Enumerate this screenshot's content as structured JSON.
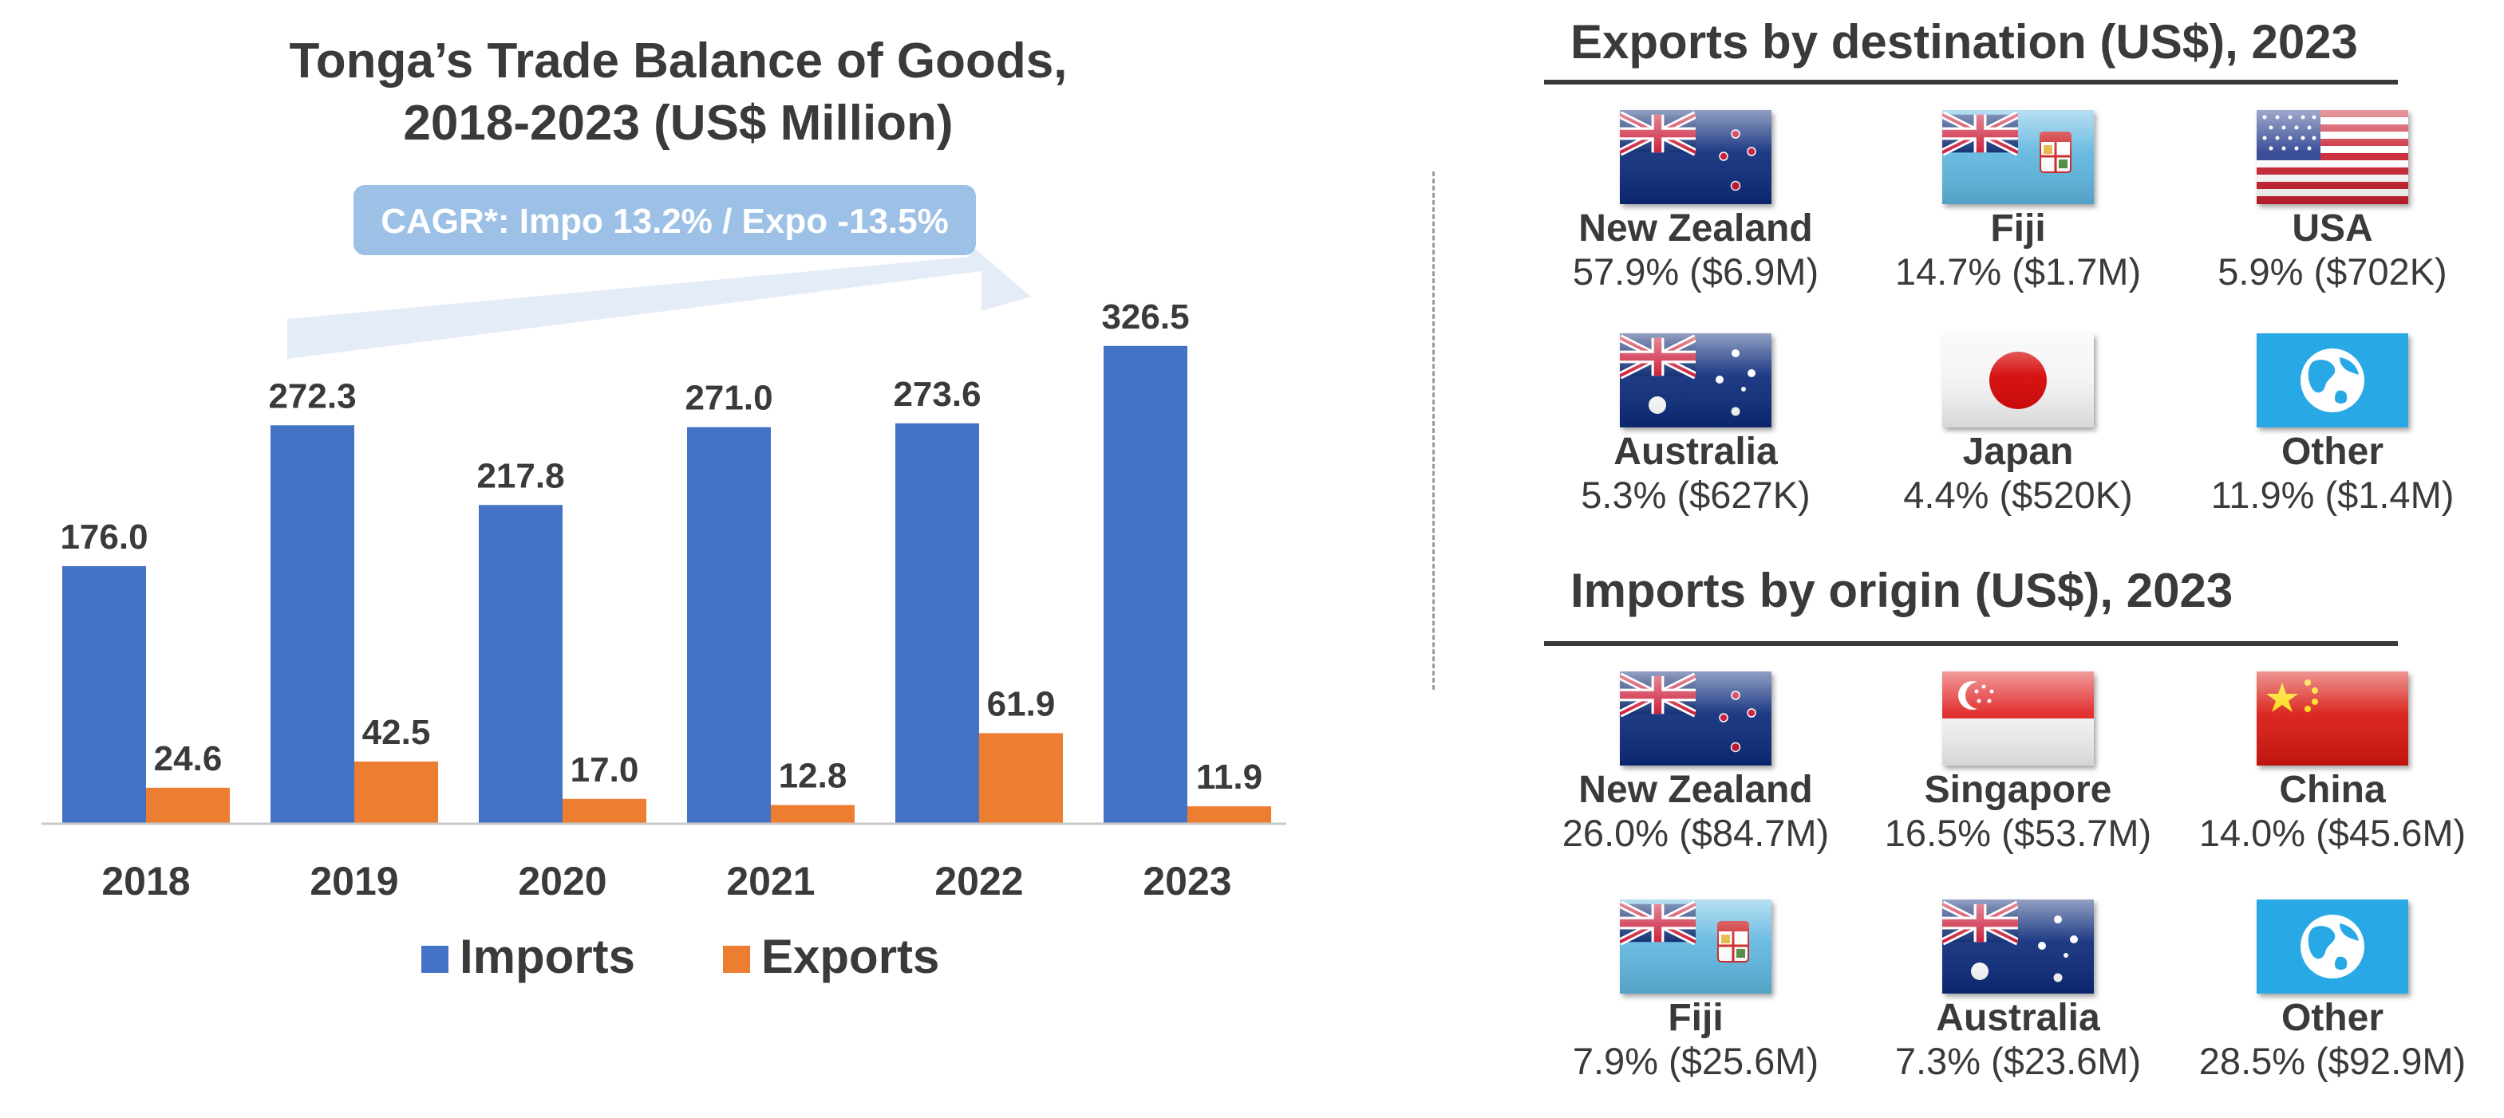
{
  "chart_data": {
    "type": "bar",
    "title_lines": [
      "Tonga’s Trade Balance of Goods,",
      "2018-2023 (US$ Million)"
    ],
    "categories": [
      "2018",
      "2019",
      "2020",
      "2021",
      "2022",
      "2023"
    ],
    "series": [
      {
        "name": "Imports",
        "color": "#4472C4",
        "values": [
          176.0,
          272.3,
          217.8,
          271.0,
          273.6,
          326.5
        ],
        "labels": [
          "176.0",
          "272.3",
          "217.8",
          "271.0",
          "273.6",
          "326.5"
        ]
      },
      {
        "name": "Exports",
        "color": "#ED7D31",
        "values": [
          24.6,
          42.5,
          17.0,
          12.8,
          61.9,
          11.9
        ],
        "labels": [
          "24.6",
          "42.5",
          "17.0",
          "12.8",
          "61.9",
          "11.9"
        ]
      }
    ],
    "ylim": [
      0,
      350
    ],
    "grid": false,
    "legend_position": "bottom",
    "annotation": "CAGR*: Impo 13.2% / Expo -13.5%"
  },
  "exports": {
    "heading": "Exports by destination (US$), 2023",
    "items": [
      {
        "name": "New Zealand",
        "share": "57.9% ($6.9M)",
        "flag": "new-zealand-flag"
      },
      {
        "name": "Fiji",
        "share": "14.7% ($1.7M)",
        "flag": "fiji-flag"
      },
      {
        "name": "USA",
        "share": "5.9% ($702K)",
        "flag": "usa-flag"
      },
      {
        "name": "Australia",
        "share": "5.3% ($627K)",
        "flag": "australia-flag"
      },
      {
        "name": "Japan",
        "share": "4.4% ($520K)",
        "flag": "japan-flag"
      },
      {
        "name": "Other",
        "share": "11.9% ($1.4M)",
        "flag": "globe-icon"
      }
    ]
  },
  "imports": {
    "heading": "Imports by origin (US$), 2023",
    "items": [
      {
        "name": "New Zealand",
        "share": "26.0% ($84.7M)",
        "flag": "new-zealand-flag"
      },
      {
        "name": "Singapore",
        "share": "16.5% ($53.7M)",
        "flag": "singapore-flag"
      },
      {
        "name": "China",
        "share": "14.0% ($45.6M)",
        "flag": "china-flag"
      },
      {
        "name": "Fiji",
        "share": "7.9% ($25.6M)",
        "flag": "fiji-flag"
      },
      {
        "name": "Australia",
        "share": "7.3% ($23.6M)",
        "flag": "australia-flag"
      },
      {
        "name": "Other",
        "share": "28.5% ($92.9M)",
        "flag": "globe-icon"
      }
    ]
  }
}
